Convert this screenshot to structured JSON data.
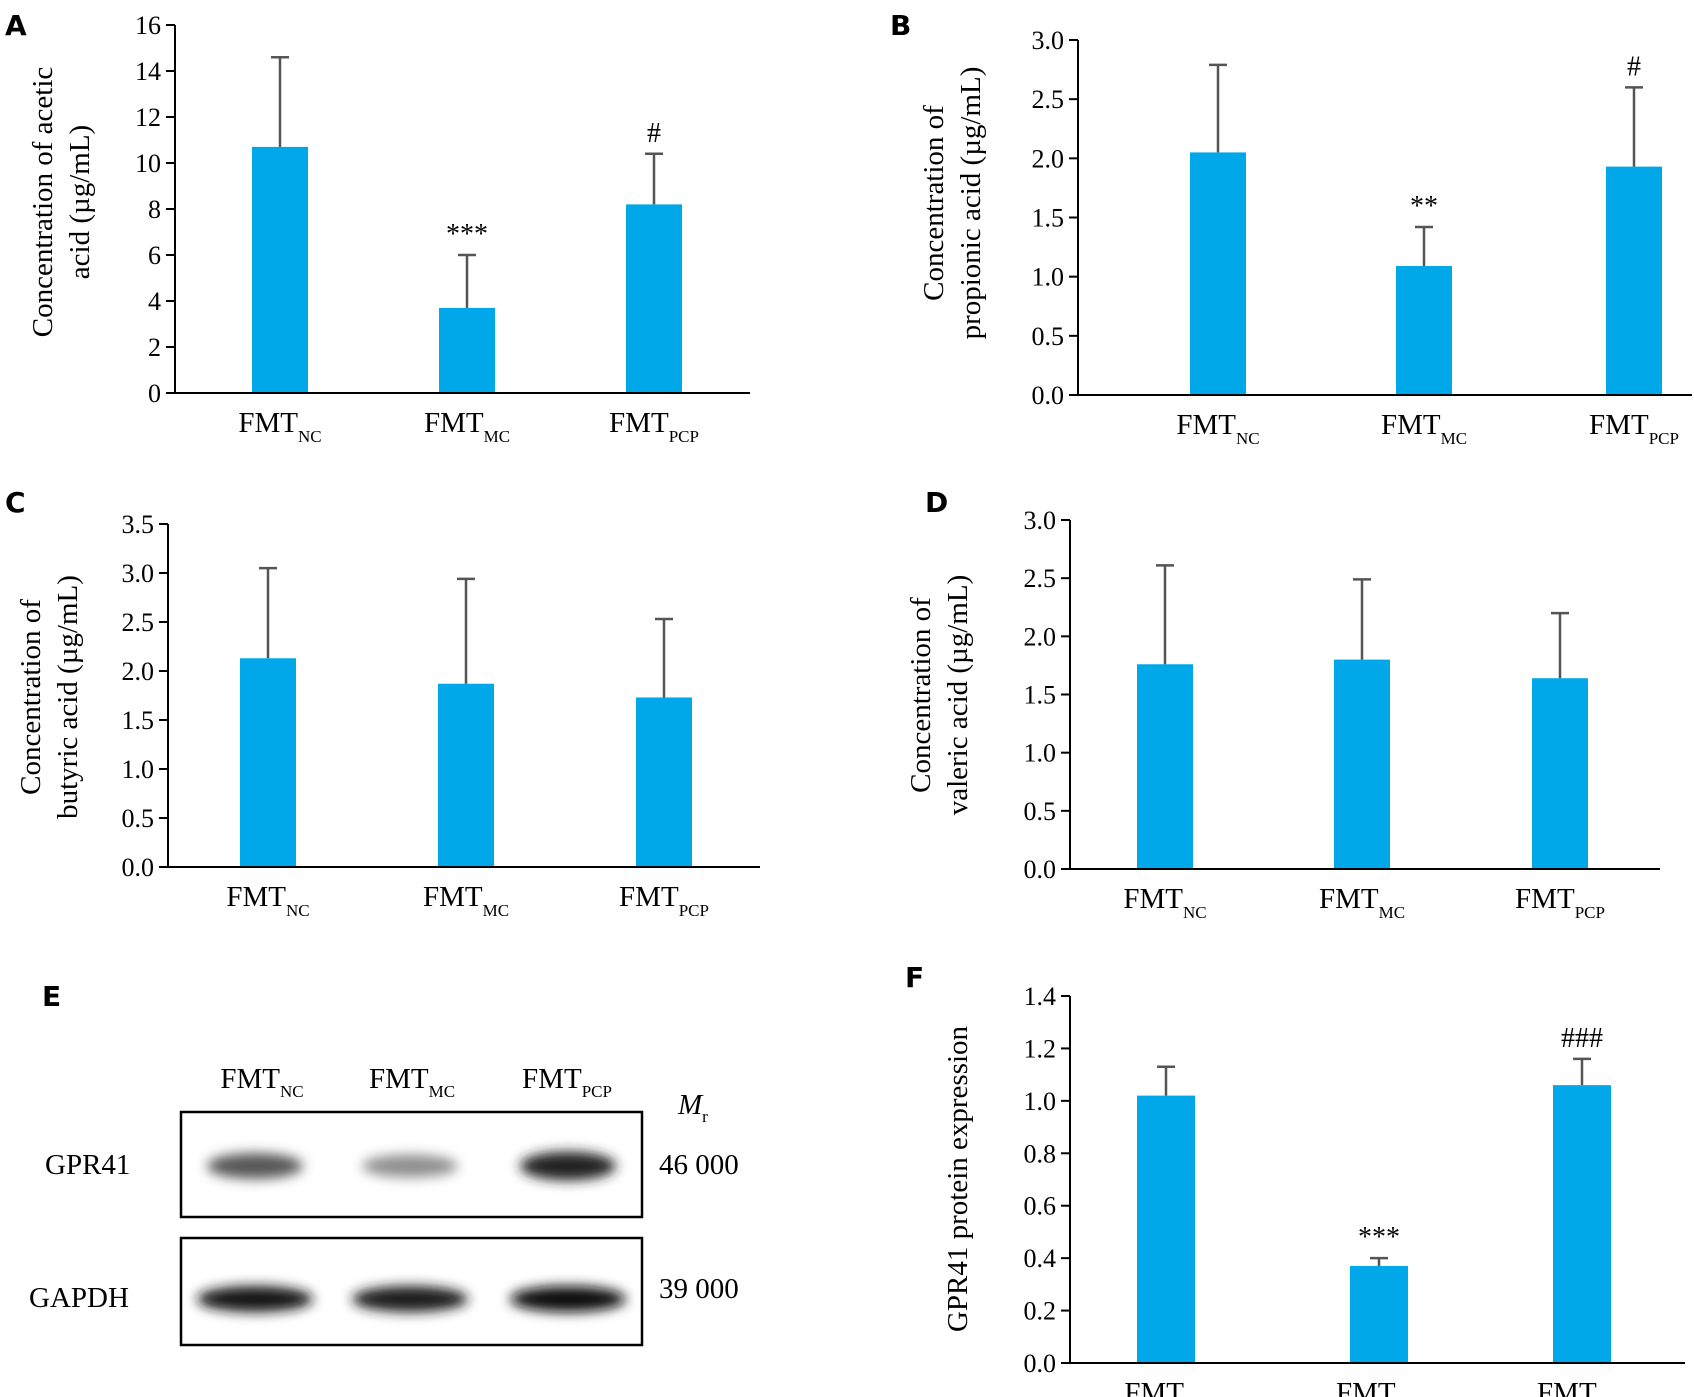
{
  "colors": {
    "bar": "#00a8ea",
    "error": "#555555",
    "axis": "#000000"
  },
  "chart_data": [
    {
      "panel": "A",
      "type": "bar",
      "categories": [
        "FMT_NC",
        "FMT_MC",
        "FMT_PCP"
      ],
      "values": [
        10.7,
        3.7,
        8.2
      ],
      "errors": [
        3.9,
        2.3,
        2.2
      ],
      "annotations": [
        "",
        "***",
        "#"
      ],
      "ylabel_lines": [
        "Concentration of acetic",
        "acid (µg/mL)"
      ],
      "ylim": [
        0,
        16
      ],
      "yticks": [
        "0",
        "2",
        "4",
        "6",
        "8",
        "10",
        "12",
        "14",
        "16"
      ]
    },
    {
      "panel": "B",
      "type": "bar",
      "categories": [
        "FMT_NC",
        "FMT_MC",
        "FMT_PCP"
      ],
      "values": [
        2.05,
        1.09,
        1.93
      ],
      "errors": [
        0.74,
        0.33,
        0.67
      ],
      "annotations": [
        "",
        "**",
        "#"
      ],
      "ylabel_lines": [
        "Concentration of",
        "propionic acid (µg/mL)"
      ],
      "ylim": [
        0,
        3.0
      ],
      "yticks": [
        "0.0",
        "0.5",
        "1.0",
        "1.5",
        "2.0",
        "2.5",
        "3.0"
      ]
    },
    {
      "panel": "C",
      "type": "bar",
      "categories": [
        "FMT_NC",
        "FMT_MC",
        "FMT_PCP"
      ],
      "values": [
        2.13,
        1.87,
        1.73
      ],
      "errors": [
        0.92,
        1.07,
        0.8
      ],
      "annotations": [
        "",
        "",
        ""
      ],
      "ylabel_lines": [
        "Concentration of",
        "butyric acid (µg/mL)"
      ],
      "ylim": [
        0,
        3.5
      ],
      "yticks": [
        "0.0",
        "0.5",
        "1.0",
        "1.5",
        "2.0",
        "2.5",
        "3.0",
        "3.5"
      ]
    },
    {
      "panel": "D",
      "type": "bar",
      "categories": [
        "FMT_NC",
        "FMT_MC",
        "FMT_PCP"
      ],
      "values": [
        1.76,
        1.8,
        1.64
      ],
      "errors": [
        0.85,
        0.69,
        0.56
      ],
      "annotations": [
        "",
        "",
        ""
      ],
      "ylabel_lines": [
        "Concentration of",
        "valeric acid (µg/mL)"
      ],
      "ylim": [
        0,
        3.0
      ],
      "yticks": [
        "0.0",
        "0.5",
        "1.0",
        "1.5",
        "2.0",
        "2.5",
        "3.0"
      ]
    },
    {
      "panel": "F",
      "type": "bar",
      "categories": [
        "FMT_NC",
        "FMT_MC",
        "FMT_PCP"
      ],
      "values": [
        1.02,
        0.37,
        1.06
      ],
      "errors": [
        0.11,
        0.03,
        0.1
      ],
      "annotations": [
        "",
        "***",
        "###"
      ],
      "ylabel_lines": [
        "GPR41 protein expression"
      ],
      "ylim": [
        0,
        1.4
      ],
      "yticks": [
        "0.0",
        "0.2",
        "0.4",
        "0.6",
        "0.8",
        "1.0",
        "1.2",
        "1.4"
      ]
    }
  ],
  "blot": {
    "panel": "E",
    "lanes": [
      "FMT_NC",
      "FMT_MC",
      "FMT_PCP"
    ],
    "mr_label": "M",
    "mr_sub": "r",
    "rows": [
      {
        "label": "GPR41",
        "mr": "46 000",
        "intensity": [
          0.65,
          0.4,
          0.9
        ]
      },
      {
        "label": "GAPDH",
        "mr": "39 000",
        "intensity": [
          0.95,
          0.92,
          0.98
        ]
      }
    ]
  }
}
